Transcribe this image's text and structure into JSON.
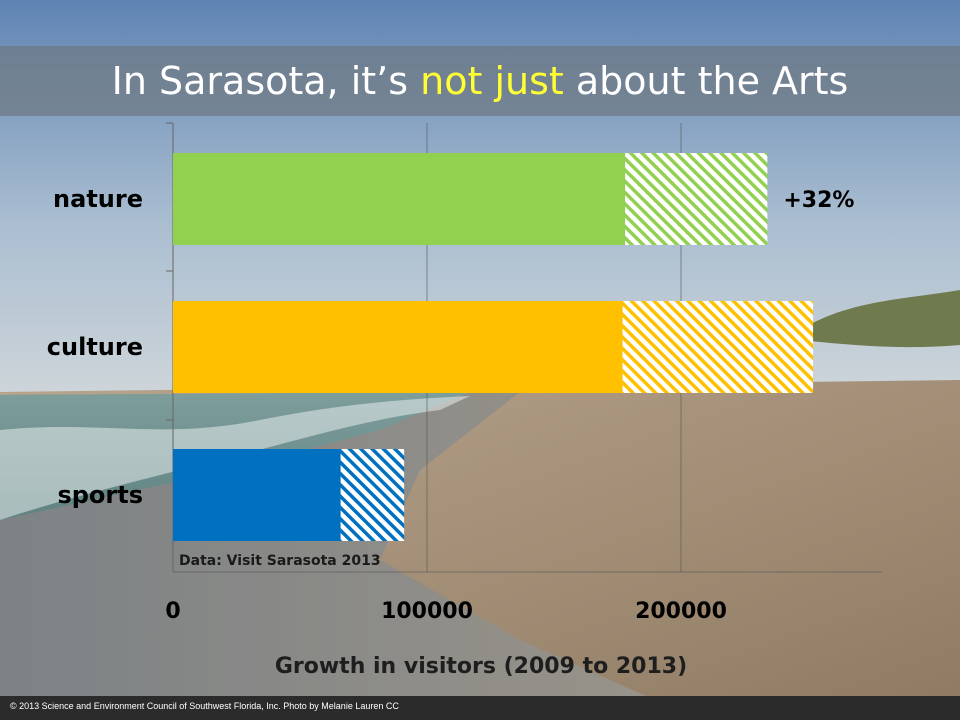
{
  "slide": {
    "title_before": "In Sarasota, it’s ",
    "title_highlight": "not just",
    "title_after": " about the Arts",
    "footer": "© 2013 Science and Environment Council of Southwest Florida, Inc.  Photo by Melanie Lauren  CC",
    "background_image": "beach photo"
  },
  "colors": {
    "nature": "#92d050",
    "culture": "#ffc000",
    "sports": "#0070c0",
    "highlight": "#ffff33",
    "title_band": "#6e7882"
  },
  "chart_data": {
    "type": "bar",
    "orientation": "horizontal",
    "stacked": true,
    "categories": [
      "nature",
      "culture",
      "sports"
    ],
    "series": [
      {
        "values": [
          178000,
          177000,
          66000
        ],
        "fill": "solid"
      },
      {
        "values": [
          56000,
          75000,
          25000
        ],
        "fill": "hatched"
      }
    ],
    "xlabel": "Growth in visitors (2009 to 2013)",
    "xlim": [
      0,
      280000
    ],
    "xticks": [
      0,
      100000,
      200000
    ],
    "xtick_labels": [
      "0",
      "100000",
      "200000"
    ],
    "grid": true,
    "annotations": [
      {
        "category": "nature",
        "text": "+32%"
      }
    ],
    "source": "Data: Visit Sarasota 2013"
  }
}
